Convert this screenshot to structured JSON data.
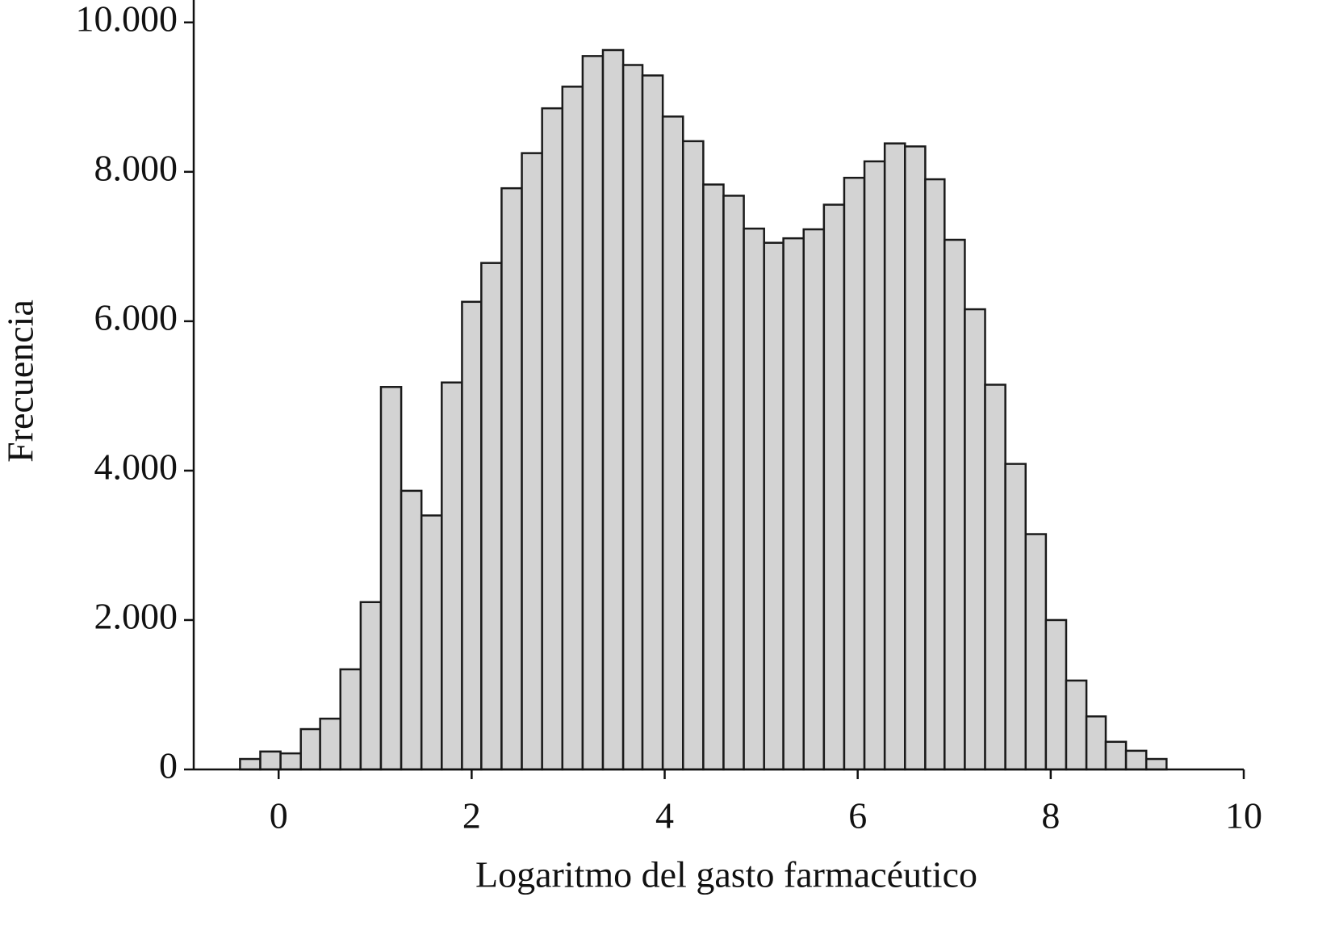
{
  "chart_data": {
    "type": "histogram",
    "x_label": "Logaritmo del gasto farmacéutico",
    "y_label": "Frecuencia",
    "bins": [
      -0.4,
      -0.19,
      0.02,
      0.23,
      0.43,
      0.64,
      0.85,
      1.06,
      1.27,
      1.48,
      1.69,
      1.9,
      2.1,
      2.31,
      2.52,
      2.73,
      2.94,
      3.15,
      3.36,
      3.57,
      3.77,
      3.98,
      4.19,
      4.4,
      4.61,
      4.82,
      5.03,
      5.23,
      5.44,
      5.65,
      5.86,
      6.07,
      6.28,
      6.49,
      6.7,
      6.9,
      7.11,
      7.32,
      7.53,
      7.74,
      7.95,
      8.16,
      8.37,
      8.57,
      8.78,
      8.99,
      9.2
    ],
    "values": [
      140,
      240,
      215,
      540,
      680,
      1340,
      2240,
      5120,
      3730,
      3400,
      5180,
      6260,
      6780,
      7780,
      8250,
      8850,
      9140,
      9550,
      9630,
      9430,
      9290,
      8740,
      8410,
      7830,
      7680,
      7240,
      7050,
      7110,
      7230,
      7560,
      7920,
      8140,
      8380,
      8340,
      7900,
      7090,
      6160,
      5150,
      4090,
      3150,
      2000,
      1190,
      710,
      370,
      250,
      140
    ],
    "color": "#d3d3d3",
    "edge_color": "#1a1a1a",
    "xlim": [
      -0.88,
      10
    ],
    "xticks": [
      0,
      2,
      4,
      6,
      8,
      10
    ],
    "ylim": [
      0,
      10300
    ],
    "yticks": [
      0,
      {
        "value": 2000,
        "label": "2.000"
      },
      {
        "value": 4000,
        "label": "4.000"
      },
      {
        "value": 6000,
        "label": "6.000"
      },
      {
        "value": 8000,
        "label": "8.000"
      },
      {
        "value": 10000,
        "label": "10.000"
      }
    ]
  }
}
